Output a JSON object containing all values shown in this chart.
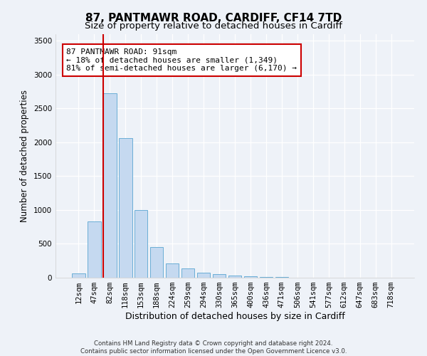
{
  "title": "87, PANTMAWR ROAD, CARDIFF, CF14 7TD",
  "subtitle": "Size of property relative to detached houses in Cardiff",
  "xlabel": "Distribution of detached houses by size in Cardiff",
  "ylabel": "Number of detached properties",
  "categories": [
    "12sqm",
    "47sqm",
    "82sqm",
    "118sqm",
    "153sqm",
    "188sqm",
    "224sqm",
    "259sqm",
    "294sqm",
    "330sqm",
    "365sqm",
    "400sqm",
    "436sqm",
    "471sqm",
    "506sqm",
    "541sqm",
    "577sqm",
    "612sqm",
    "647sqm",
    "683sqm",
    "718sqm"
  ],
  "values": [
    60,
    830,
    2720,
    2060,
    1000,
    450,
    210,
    140,
    70,
    55,
    35,
    20,
    15,
    10,
    5,
    3,
    2,
    1,
    1,
    0,
    0
  ],
  "bar_color": "#c5d9f0",
  "bar_edge_color": "#6baed6",
  "vline_color": "#cc0000",
  "vline_x": 1.575,
  "annotation_line1": "87 PANTMAWR ROAD: 91sqm",
  "annotation_line2": "← 18% of detached houses are smaller (1,349)",
  "annotation_line3": "81% of semi-detached houses are larger (6,170) →",
  "box_edge_color": "#cc0000",
  "ylim": [
    0,
    3600
  ],
  "yticks": [
    0,
    500,
    1000,
    1500,
    2000,
    2500,
    3000,
    3500
  ],
  "footer1": "Contains HM Land Registry data © Crown copyright and database right 2024.",
  "footer2": "Contains public sector information licensed under the Open Government Licence v3.0.",
  "title_fontsize": 11,
  "subtitle_fontsize": 9.5,
  "xlabel_fontsize": 9,
  "ylabel_fontsize": 8.5,
  "annotation_fontsize": 8,
  "bg_color": "#eef2f8",
  "plot_bg_color": "#eef2f8",
  "grid_color": "#ffffff",
  "tick_fontsize": 7.5
}
